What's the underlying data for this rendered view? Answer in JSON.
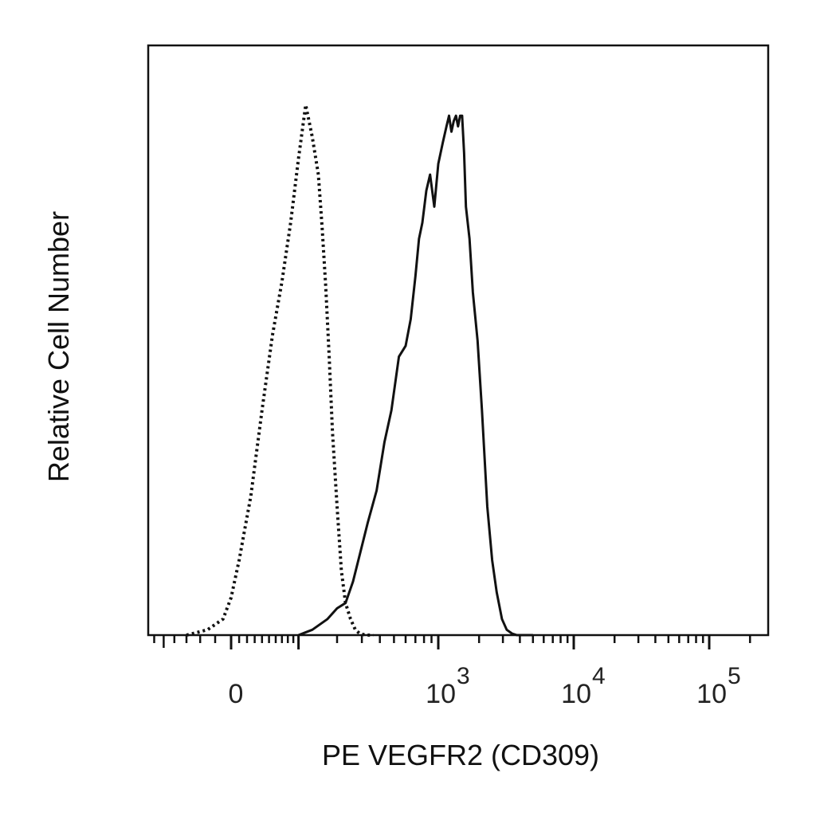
{
  "chart_data": {
    "type": "line",
    "title": "",
    "xlabel": "PE VEGFR2 (CD309)",
    "ylabel": "Relative Cell Number",
    "x_scale": "biexponential",
    "grid": false,
    "xlim": [
      -200,
      150000
    ],
    "ylim": [
      0,
      100
    ],
    "x_ticks": [
      {
        "value": 0,
        "base": "0",
        "exp": ""
      },
      {
        "value": 1000,
        "base": "10",
        "exp": "3"
      },
      {
        "value": 10000,
        "base": "10",
        "exp": "4"
      },
      {
        "value": 100000,
        "base": "10",
        "exp": "5"
      }
    ],
    "series": [
      {
        "style": "dotted",
        "color": "#111111",
        "x": [
          -60,
          -30,
          -10,
          0,
          10,
          25,
          40,
          55,
          70,
          85,
          100,
          115,
          130,
          145,
          155,
          165,
          175,
          185,
          200,
          215,
          230,
          250,
          270,
          290,
          320,
          360
        ],
        "y": [
          0,
          1,
          3,
          7,
          14,
          26,
          42,
          56,
          66,
          77,
          89,
          99,
          93,
          86,
          76,
          65,
          52,
          38,
          24,
          12,
          6,
          3,
          1,
          0.3,
          0,
          0
        ]
      },
      {
        "style": "solid",
        "color": "#111111",
        "x": [
          100,
          130,
          170,
          200,
          230,
          260,
          290,
          330,
          380,
          430,
          480,
          540,
          600,
          650,
          700,
          740,
          780,
          830,
          880,
          940,
          1000,
          1080,
          1150,
          1200,
          1250,
          1300,
          1350,
          1400,
          1450,
          1500,
          1550,
          1600,
          1700,
          1800,
          1950,
          2100,
          2300,
          2500,
          2700,
          2950,
          3200,
          3500,
          3800,
          4100,
          4500,
          5000
        ],
        "y": [
          0,
          1,
          3,
          5,
          6,
          10,
          15,
          21,
          27,
          36,
          42,
          52,
          54,
          59,
          67,
          74,
          77,
          83,
          86,
          80,
          88,
          92,
          95,
          97,
          94,
          96,
          97,
          95,
          97,
          97,
          90,
          80,
          74,
          64,
          55,
          42,
          24,
          14,
          8,
          3,
          1,
          0.3,
          0,
          0,
          0,
          0
        ]
      }
    ]
  }
}
